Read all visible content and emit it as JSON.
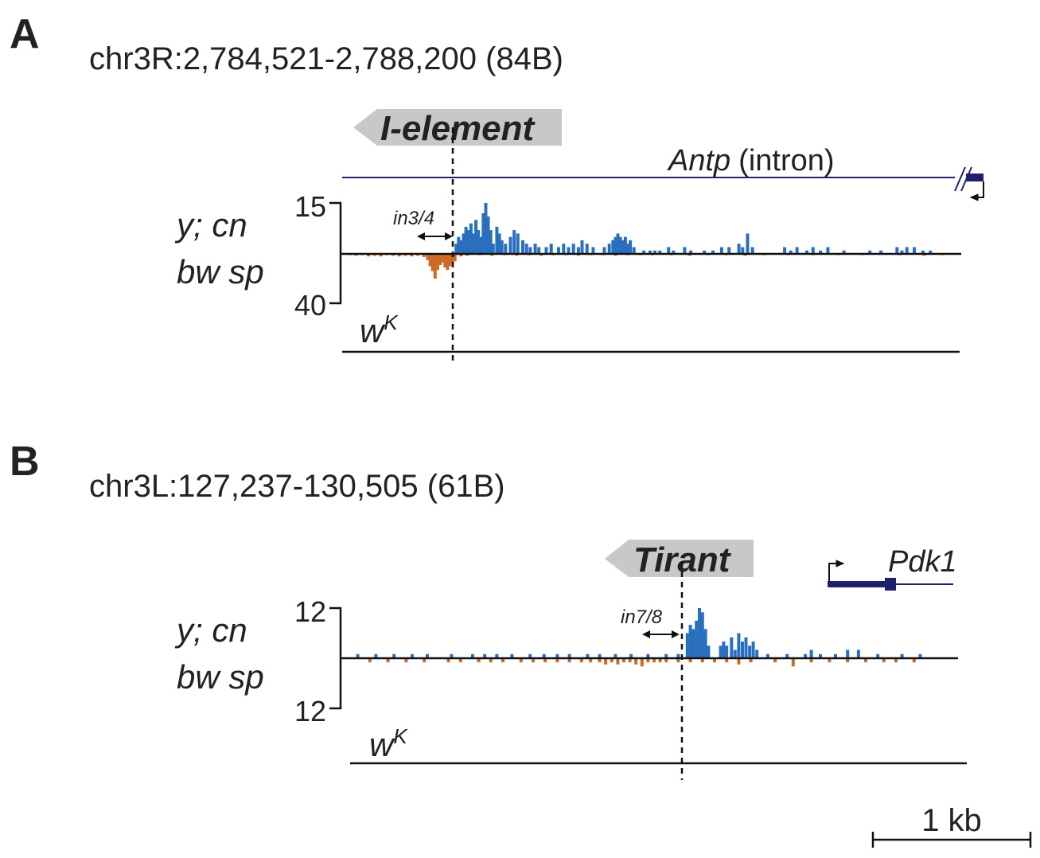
{
  "colors": {
    "plus_strand": "#2a6fbd",
    "minus_strand": "#cc6a28",
    "gene": "#1f1f6e",
    "te_box": "#c8c8c8",
    "axis": "#111111"
  },
  "panels": [
    {
      "letter": "A",
      "coordinates": "chr3R:2,784,521-2,788,200 (84B)",
      "te_name": "I-element",
      "gene_name": "Antp",
      "gene_note": "(intron)",
      "track_label_line1": "y; cn",
      "track_label_line2": "bw sp",
      "control_label_base": "w",
      "control_label_sup": "K",
      "y_top_tick": "15",
      "y_bottom_tick": "40",
      "primer_label": "in3/4",
      "chart_data": {
        "type": "bar",
        "plus_max": 15,
        "minus_max": 40,
        "plus": [
          [
            0.182,
            3
          ],
          [
            0.186,
            5
          ],
          [
            0.19,
            4
          ],
          [
            0.194,
            6
          ],
          [
            0.198,
            8
          ],
          [
            0.202,
            7
          ],
          [
            0.206,
            9
          ],
          [
            0.21,
            6
          ],
          [
            0.214,
            10
          ],
          [
            0.218,
            7
          ],
          [
            0.222,
            5
          ],
          [
            0.226,
            12
          ],
          [
            0.23,
            15
          ],
          [
            0.234,
            11
          ],
          [
            0.238,
            7
          ],
          [
            0.242,
            3
          ],
          [
            0.248,
            8
          ],
          [
            0.252,
            6
          ],
          [
            0.256,
            4
          ],
          [
            0.262,
            3
          ],
          [
            0.27,
            5
          ],
          [
            0.276,
            7
          ],
          [
            0.282,
            6
          ],
          [
            0.29,
            4
          ],
          [
            0.296,
            3
          ],
          [
            0.302,
            2
          ],
          [
            0.31,
            3
          ],
          [
            0.316,
            2
          ],
          [
            0.328,
            2
          ],
          [
            0.336,
            3
          ],
          [
            0.348,
            2
          ],
          [
            0.356,
            3
          ],
          [
            0.364,
            2
          ],
          [
            0.372,
            3
          ],
          [
            0.38,
            2
          ],
          [
            0.386,
            4
          ],
          [
            0.394,
            3
          ],
          [
            0.404,
            2
          ],
          [
            0.422,
            2
          ],
          [
            0.43,
            3
          ],
          [
            0.436,
            4
          ],
          [
            0.44,
            5
          ],
          [
            0.444,
            6
          ],
          [
            0.448,
            5
          ],
          [
            0.452,
            4
          ],
          [
            0.456,
            5
          ],
          [
            0.46,
            3
          ],
          [
            0.464,
            4
          ],
          [
            0.47,
            2
          ],
          [
            0.486,
            1
          ],
          [
            0.496,
            1
          ],
          [
            0.504,
            1
          ],
          [
            0.512,
            1
          ],
          [
            0.526,
            2
          ],
          [
            0.534,
            1
          ],
          [
            0.552,
            2
          ],
          [
            0.562,
            1
          ],
          [
            0.584,
            1
          ],
          [
            0.598,
            1
          ],
          [
            0.612,
            2
          ],
          [
            0.624,
            2
          ],
          [
            0.64,
            3
          ],
          [
            0.646,
            2
          ],
          [
            0.654,
            6
          ],
          [
            0.662,
            2
          ],
          [
            0.714,
            2
          ],
          [
            0.724,
            1
          ],
          [
            0.734,
            2
          ],
          [
            0.75,
            1
          ],
          [
            0.76,
            2
          ],
          [
            0.772,
            1
          ],
          [
            0.784,
            2
          ],
          [
            0.81,
            1
          ],
          [
            0.852,
            1
          ],
          [
            0.87,
            1
          ],
          [
            0.896,
            2
          ],
          [
            0.904,
            1
          ],
          [
            0.912,
            2
          ],
          [
            0.924,
            2
          ],
          [
            0.938,
            1
          ],
          [
            0.95,
            1
          ]
        ],
        "minus": [
          [
            0.01,
            1
          ],
          [
            0.02,
            1.5
          ],
          [
            0.03,
            1
          ],
          [
            0.04,
            2
          ],
          [
            0.05,
            1.5
          ],
          [
            0.06,
            2
          ],
          [
            0.07,
            1
          ],
          [
            0.08,
            1.5
          ],
          [
            0.09,
            2
          ],
          [
            0.1,
            1.5
          ],
          [
            0.11,
            2
          ],
          [
            0.12,
            1.5
          ],
          [
            0.13,
            2.5
          ],
          [
            0.136,
            5
          ],
          [
            0.14,
            10
          ],
          [
            0.144,
            14
          ],
          [
            0.148,
            20
          ],
          [
            0.152,
            13
          ],
          [
            0.156,
            9
          ],
          [
            0.16,
            7
          ],
          [
            0.164,
            11
          ],
          [
            0.168,
            13
          ],
          [
            0.172,
            10
          ],
          [
            0.176,
            8
          ],
          [
            0.18,
            6
          ],
          [
            0.19,
            2
          ],
          [
            0.2,
            1.5
          ],
          [
            0.22,
            1
          ],
          [
            0.24,
            1.5
          ],
          [
            0.26,
            1
          ],
          [
            0.28,
            1.5
          ],
          [
            0.3,
            1
          ],
          [
            0.32,
            1.5
          ],
          [
            0.34,
            1
          ],
          [
            0.36,
            1
          ],
          [
            0.38,
            1.5
          ],
          [
            0.4,
            1
          ],
          [
            0.42,
            1
          ],
          [
            0.44,
            1.5
          ],
          [
            0.46,
            1
          ],
          [
            0.48,
            1
          ],
          [
            0.5,
            1
          ],
          [
            0.53,
            1
          ],
          [
            0.56,
            1.5
          ],
          [
            0.59,
            1
          ],
          [
            0.62,
            1
          ],
          [
            0.65,
            1.5
          ],
          [
            0.68,
            1
          ],
          [
            0.72,
            1
          ],
          [
            0.76,
            1
          ],
          [
            0.8,
            1
          ],
          [
            0.84,
            1
          ],
          [
            0.9,
            1
          ],
          [
            0.94,
            1.5
          ],
          [
            0.97,
            1
          ]
        ]
      }
    },
    {
      "letter": "B",
      "coordinates": "chr3L:127,237-130,505 (61B)",
      "te_name": "Tirant",
      "gene_name": "Pdk1",
      "gene_note": "",
      "track_label_line1": "y; cn",
      "track_label_line2": "bw sp",
      "control_label_base": "w",
      "control_label_sup": "K",
      "y_top_tick": "12",
      "y_bottom_tick": "12",
      "primer_label": "in7/8",
      "chart_data": {
        "type": "bar",
        "plus_max": 12,
        "minus_max": 12,
        "plus": [
          [
            0.01,
            1
          ],
          [
            0.04,
            1
          ],
          [
            0.07,
            1
          ],
          [
            0.1,
            1
          ],
          [
            0.125,
            1
          ],
          [
            0.165,
            1
          ],
          [
            0.2,
            1
          ],
          [
            0.22,
            1
          ],
          [
            0.24,
            1
          ],
          [
            0.265,
            1
          ],
          [
            0.295,
            1
          ],
          [
            0.318,
            1
          ],
          [
            0.34,
            1
          ],
          [
            0.36,
            1
          ],
          [
            0.39,
            1
          ],
          [
            0.41,
            1
          ],
          [
            0.436,
            1
          ],
          [
            0.462,
            1
          ],
          [
            0.49,
            1
          ],
          [
            0.52,
            1
          ],
          [
            0.54,
            1
          ],
          [
            0.555,
            6
          ],
          [
            0.56,
            8
          ],
          [
            0.565,
            7
          ],
          [
            0.57,
            9
          ],
          [
            0.575,
            12
          ],
          [
            0.58,
            11
          ],
          [
            0.585,
            7
          ],
          [
            0.59,
            3
          ],
          [
            0.61,
            3
          ],
          [
            0.615,
            4
          ],
          [
            0.62,
            3
          ],
          [
            0.628,
            5
          ],
          [
            0.634,
            2
          ],
          [
            0.64,
            6
          ],
          [
            0.646,
            4
          ],
          [
            0.652,
            5
          ],
          [
            0.658,
            3
          ],
          [
            0.664,
            4
          ],
          [
            0.67,
            2
          ],
          [
            0.688,
            1
          ],
          [
            0.72,
            1
          ],
          [
            0.75,
            1
          ],
          [
            0.76,
            2
          ],
          [
            0.775,
            1
          ],
          [
            0.8,
            1
          ],
          [
            0.82,
            2
          ],
          [
            0.838,
            2
          ],
          [
            0.87,
            1
          ],
          [
            0.91,
            1
          ],
          [
            0.94,
            1
          ]
        ],
        "minus": [
          [
            0.03,
            1
          ],
          [
            0.06,
            1
          ],
          [
            0.09,
            1
          ],
          [
            0.12,
            1
          ],
          [
            0.16,
            1
          ],
          [
            0.18,
            1
          ],
          [
            0.21,
            1
          ],
          [
            0.23,
            1
          ],
          [
            0.25,
            1
          ],
          [
            0.28,
            1
          ],
          [
            0.3,
            1
          ],
          [
            0.32,
            1
          ],
          [
            0.34,
            1
          ],
          [
            0.36,
            1
          ],
          [
            0.38,
            1
          ],
          [
            0.395,
            1
          ],
          [
            0.41,
            1
          ],
          [
            0.42,
            1.5
          ],
          [
            0.43,
            1
          ],
          [
            0.44,
            1.5
          ],
          [
            0.45,
            1
          ],
          [
            0.46,
            1
          ],
          [
            0.47,
            1.5
          ],
          [
            0.48,
            2
          ],
          [
            0.49,
            1
          ],
          [
            0.5,
            1
          ],
          [
            0.51,
            1
          ],
          [
            0.52,
            1
          ],
          [
            0.54,
            1
          ],
          [
            0.56,
            1
          ],
          [
            0.58,
            1
          ],
          [
            0.6,
            1
          ],
          [
            0.62,
            1
          ],
          [
            0.64,
            1.5
          ],
          [
            0.66,
            1
          ],
          [
            0.7,
            1
          ],
          [
            0.73,
            2
          ],
          [
            0.76,
            1
          ],
          [
            0.79,
            1
          ],
          [
            0.82,
            1
          ],
          [
            0.85,
            1
          ],
          [
            0.88,
            1
          ],
          [
            0.9,
            1
          ],
          [
            0.93,
            1
          ]
        ]
      }
    }
  ],
  "scale_bar_label": "1 kb"
}
